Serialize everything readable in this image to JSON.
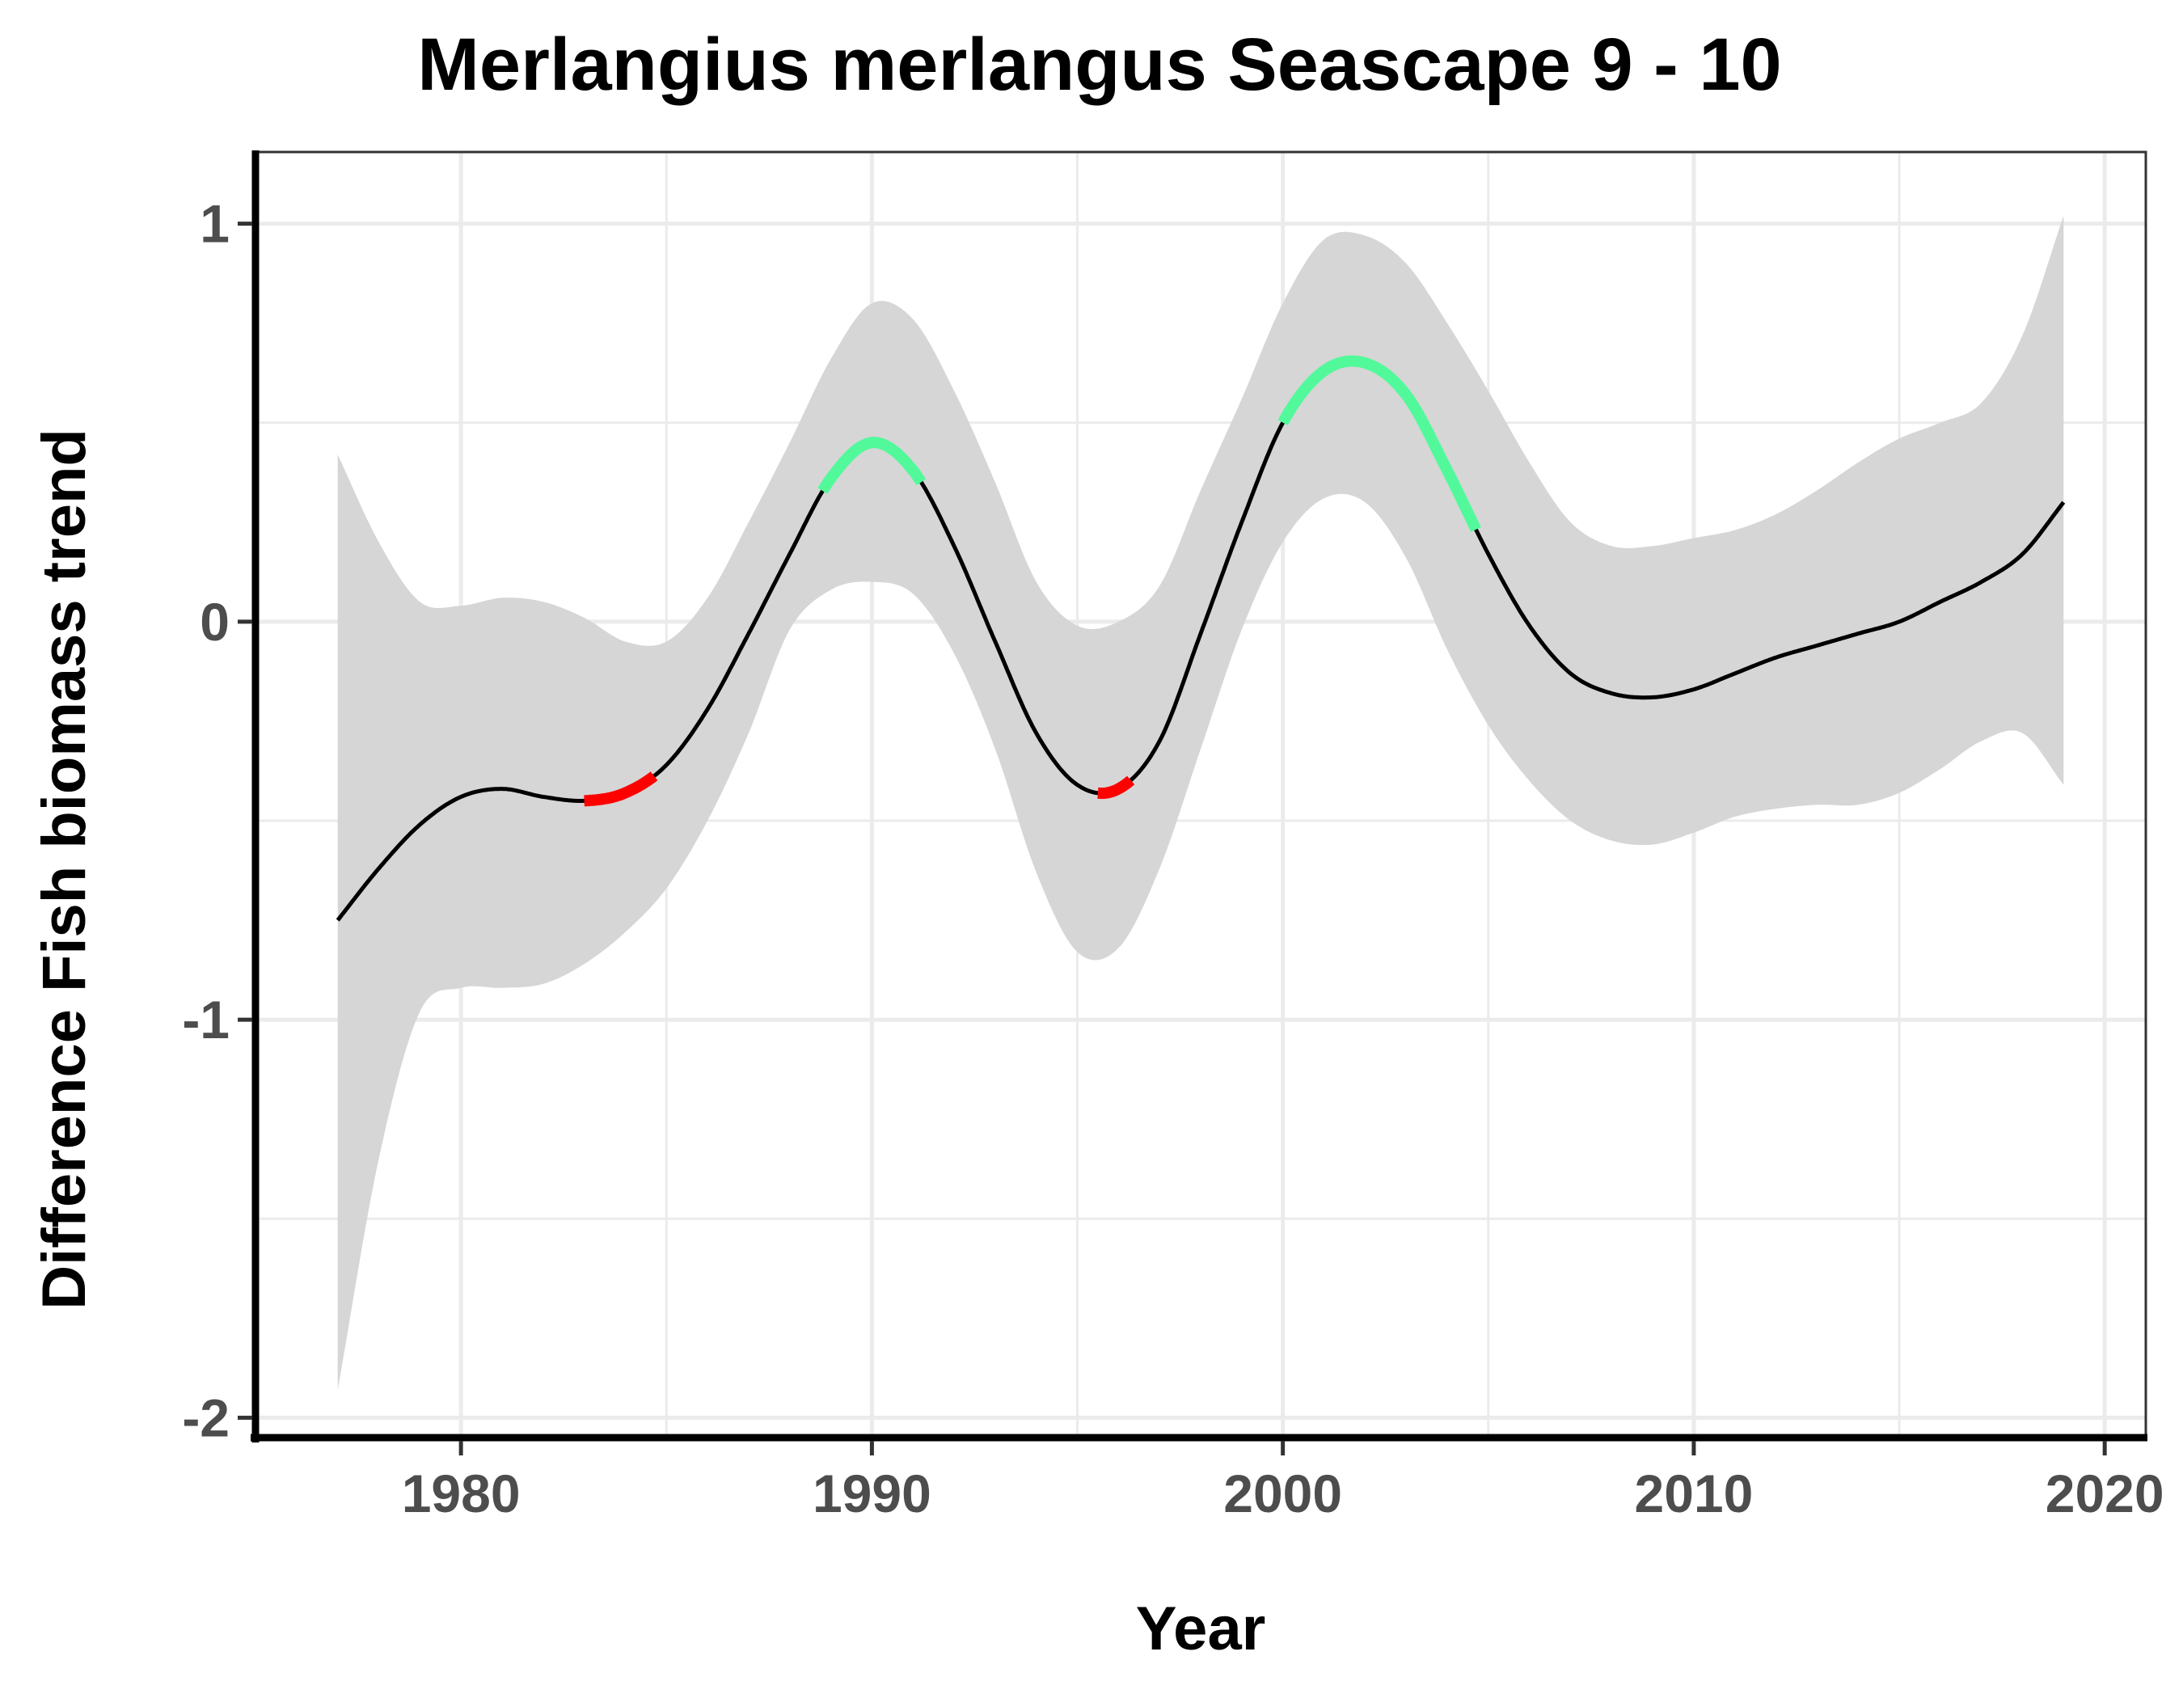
{
  "chart_data": {
    "type": "line",
    "title": "Merlangius merlangus Seascape 9 - 10",
    "xlabel": "Year",
    "ylabel": "Difference Fish biomass trend",
    "xlim": [
      1975,
      2021
    ],
    "ylim": [
      -2.05,
      1.18
    ],
    "x_ticks": [
      1980,
      1990,
      2000,
      2010,
      2020
    ],
    "x_tick_labels": [
      "1980",
      "1990",
      "2000",
      "2010",
      "2020"
    ],
    "y_ticks": [
      -2,
      -1,
      0,
      1
    ],
    "y_tick_labels": [
      "-2",
      "-1",
      "0",
      "1"
    ],
    "grid": true,
    "legend": "none",
    "colors": {
      "trend": "#000000",
      "ribbon": "#d6d6d6",
      "increase": "#52f99a",
      "decrease": "#ff0000",
      "grid": "#ebebeb",
      "axis": "#000000"
    },
    "series": [
      {
        "x": [
          1977,
          1978,
          1979,
          1980,
          1981,
          1982,
          1983,
          1984,
          1985,
          1986,
          1987,
          1988,
          1989,
          1990,
          1991,
          1992,
          1993,
          1994,
          1995,
          1996,
          1997,
          1998,
          1999,
          2000,
          2001,
          2002,
          2003,
          2004,
          2005,
          2006,
          2007,
          2008,
          2009,
          2010,
          2011,
          2012,
          2013,
          2014,
          2015,
          2016,
          2017,
          2018,
          2019
        ],
        "y": [
          -0.75,
          -0.62,
          -0.51,
          -0.44,
          -0.42,
          -0.44,
          -0.45,
          -0.43,
          -0.36,
          -0.22,
          -0.03,
          0.17,
          0.36,
          0.45,
          0.38,
          0.19,
          -0.05,
          -0.28,
          -0.41,
          -0.42,
          -0.3,
          -0.03,
          0.25,
          0.5,
          0.63,
          0.65,
          0.57,
          0.38,
          0.17,
          -0.01,
          -0.13,
          -0.18,
          -0.19,
          -0.17,
          -0.13,
          -0.09,
          -0.06,
          -0.03,
          0.0,
          0.05,
          0.1,
          0.17,
          0.3
        ],
        "lower": [
          -1.93,
          -1.35,
          -0.98,
          -0.92,
          -0.92,
          -0.91,
          -0.86,
          -0.78,
          -0.67,
          -0.5,
          -0.28,
          -0.02,
          0.08,
          0.1,
          0.07,
          -0.08,
          -0.32,
          -0.63,
          -0.83,
          -0.82,
          -0.62,
          -0.32,
          -0.02,
          0.2,
          0.31,
          0.3,
          0.16,
          -0.07,
          -0.26,
          -0.4,
          -0.5,
          -0.55,
          -0.56,
          -0.53,
          -0.49,
          -0.47,
          -0.46,
          -0.46,
          -0.43,
          -0.37,
          -0.3,
          -0.28,
          -0.41
        ],
        "upper": [
          0.42,
          0.2,
          0.05,
          0.04,
          0.06,
          0.05,
          0.01,
          -0.05,
          -0.05,
          0.06,
          0.25,
          0.45,
          0.66,
          0.8,
          0.76,
          0.58,
          0.35,
          0.1,
          -0.01,
          0.0,
          0.09,
          0.33,
          0.56,
          0.8,
          0.96,
          0.97,
          0.9,
          0.75,
          0.58,
          0.4,
          0.25,
          0.19,
          0.19,
          0.21,
          0.23,
          0.27,
          0.33,
          0.4,
          0.46,
          0.5,
          0.55,
          0.72,
          1.02
        ]
      }
    ],
    "highlighted_segments": [
      {
        "trend": "decrease",
        "from": 1983.0,
        "to": 1984.7
      },
      {
        "trend": "increase",
        "from": 1988.8,
        "to": 1991.2
      },
      {
        "trend": "decrease",
        "from": 1995.5,
        "to": 1996.3
      },
      {
        "trend": "increase",
        "from": 2000.0,
        "to": 2004.7
      }
    ]
  }
}
